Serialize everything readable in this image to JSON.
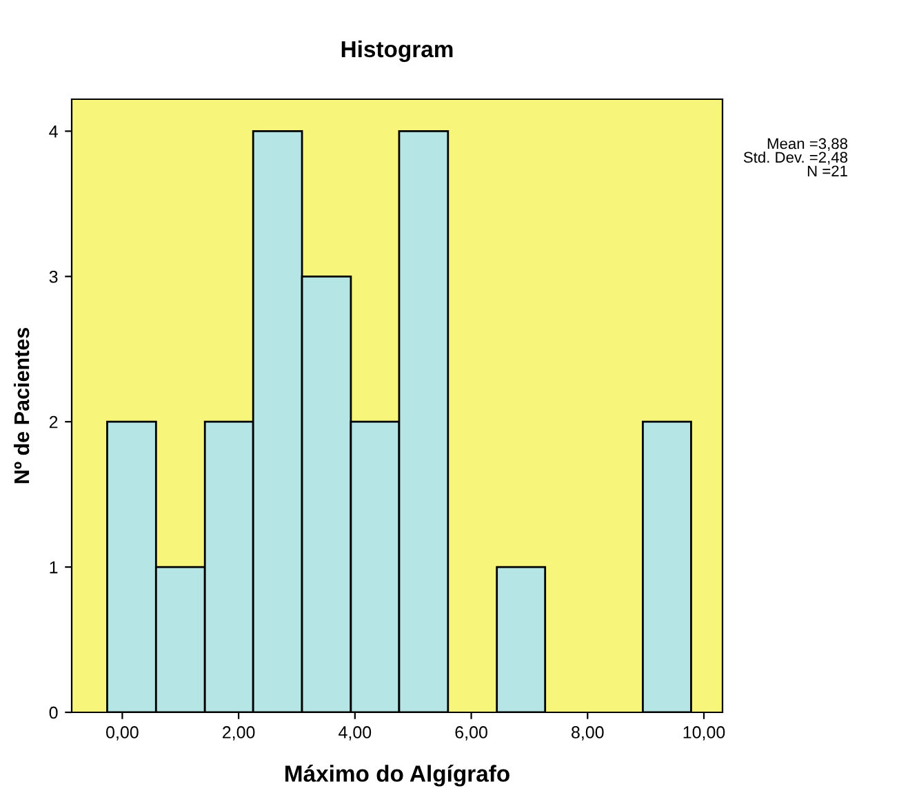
{
  "chart_data": {
    "type": "histogram",
    "title": "Histogram",
    "xlabel": "Máximo do Algígrafo",
    "ylabel": "Nº de Pacientes",
    "bins": [
      -0.26,
      0.58,
      1.42,
      2.25,
      3.09,
      3.93,
      4.76,
      5.6,
      6.44,
      7.27,
      8.95,
      9.78
    ],
    "values": [
      2,
      1,
      2,
      4,
      3,
      2,
      4,
      0,
      1,
      0,
      2
    ],
    "color": "#b5e5e5",
    "xlim": [
      -0.87,
      10.32
    ],
    "ylim": [
      0,
      4.22
    ],
    "xticks": [
      {
        "value": 0,
        "label": "0,00"
      },
      {
        "value": 2,
        "label": "2,00"
      },
      {
        "value": 4,
        "label": "4,00"
      },
      {
        "value": 6,
        "label": "6,00"
      },
      {
        "value": 8,
        "label": "8,00"
      },
      {
        "value": 10,
        "label": "10,00"
      }
    ],
    "yticks": [
      0,
      1,
      2,
      3,
      4
    ],
    "annotations": [
      "Mean =3,88\nStd. Dev. =2,48\nN =21"
    ],
    "grid": false,
    "legend": false
  }
}
